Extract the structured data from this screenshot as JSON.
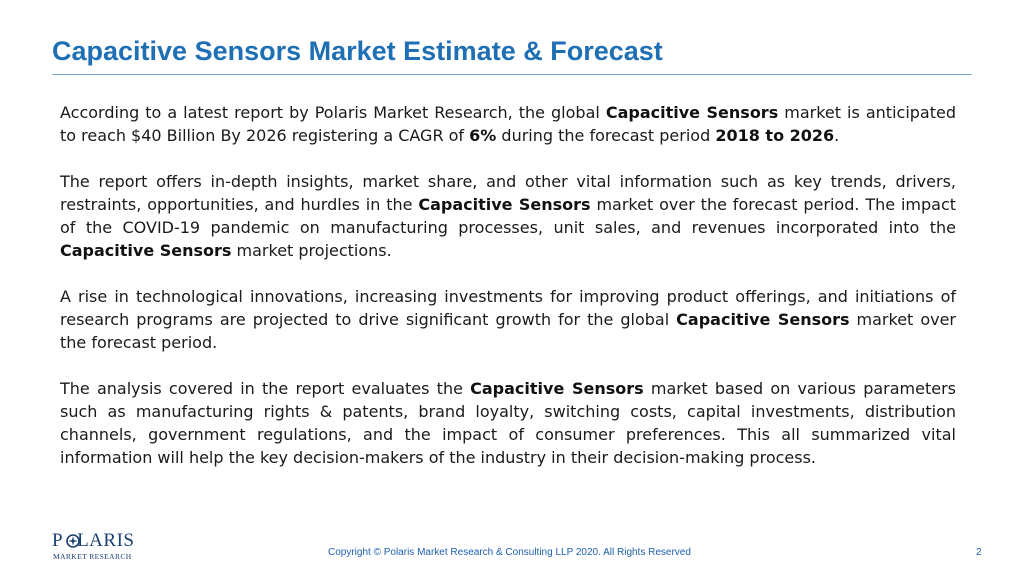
{
  "slide": {
    "title": "Capacitive Sensors Market Estimate & Forecast",
    "page_number": "2",
    "copyright": "Copyright © Polaris Market Research & Consulting LLP 2020. All Rights Reserved"
  },
  "logo": {
    "word_a": "P",
    "word_b": "LARIS",
    "tagline": "MARKET RESEARCH"
  },
  "paragraphs": {
    "p1": {
      "s1": "According to a latest report by Polaris Market Research, the global ",
      "b1": "Capacitive Sensors",
      "s2": " market is anticipated to reach $40 Billion By 2026 registering a CAGR of ",
      "b2": "6%",
      "s3": " during the  forecast period ",
      "b3": "2018 to 2026",
      "s4": "."
    },
    "p2": {
      "s1": "The report offers in-depth insights, market share, and other vital information such as key trends, drivers, restraints, opportunities, and hurdles in the ",
      "b1": "Capacitive Sensors",
      "s2": " market over the forecast period. The impact of the COVID-19 pandemic on manufacturing processes, unit sales, and revenues incorporated into the  ",
      "b2": "Capacitive Sensors",
      "s3": " market projections."
    },
    "p3": {
      "s1": "A rise in technological innovations, increasing investments for improving product offerings, and initiations of research programs are projected to drive significant growth for the global ",
      "b1": "Capacitive Sensors",
      "s2": " market over the forecast period."
    },
    "p4": {
      "s1": "The analysis covered in the report evaluates the ",
      "b1": "Capacitive Sensors",
      "s2": " market based on various parameters such as manufacturing rights & patents, brand loyalty, switching costs,  capital investments, distribution channels, government regulations, and the impact of consumer preferences. This all summarized vital information will help the key decision-makers of the industry in their decision-making process."
    }
  },
  "colors": {
    "title": "#1f6fb5",
    "rule": "#7fa9d3",
    "footer": "#1f5fae",
    "logo": "#1b3f73"
  }
}
